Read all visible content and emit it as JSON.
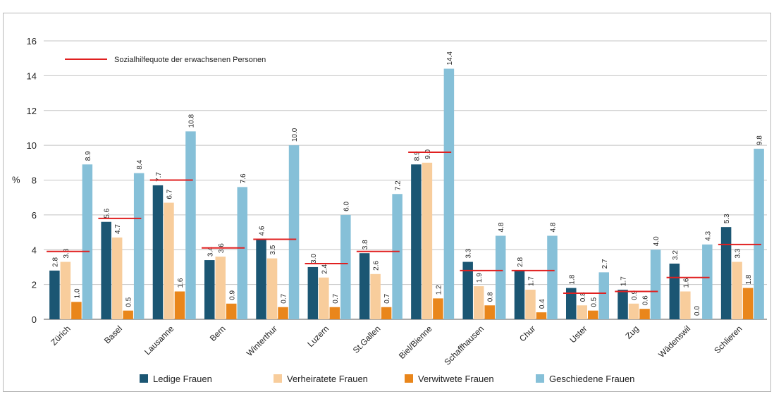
{
  "chart_data": {
    "type": "bar",
    "ylabel": "%",
    "ylim": [
      0,
      16
    ],
    "yticks": [
      "0",
      "2",
      "4",
      "6",
      "8",
      "10",
      "12",
      "14",
      "16"
    ],
    "grid": true,
    "categories": [
      "Zürich",
      "Basel",
      "Lausanne",
      "Bern",
      "Winterthur",
      "Luzern",
      "St.Gallen",
      "Biel/Bienne",
      "Schaffhausen",
      "Chur",
      "Uster",
      "Zug",
      "Wädenswil",
      "Schlieren"
    ],
    "series": [
      {
        "name": "Ledige Frauen",
        "color": "#1b5673",
        "values": [
          2.8,
          5.6,
          7.7,
          3.4,
          4.6,
          3.0,
          3.8,
          8.9,
          3.3,
          2.8,
          1.8,
          1.7,
          3.2,
          5.3
        ]
      },
      {
        "name": "Verheiratete Frauen",
        "color": "#f8cd9c",
        "values": [
          3.3,
          4.7,
          6.7,
          3.6,
          3.5,
          2.4,
          2.6,
          9.0,
          1.9,
          1.7,
          0.8,
          0.9,
          1.6,
          3.3
        ]
      },
      {
        "name": "Verwitwete Frauen",
        "color": "#e9861b",
        "values": [
          1.0,
          0.5,
          1.6,
          0.9,
          0.7,
          0.7,
          0.7,
          1.2,
          0.8,
          0.4,
          0.5,
          0.6,
          0.0,
          1.8
        ]
      },
      {
        "name": "Geschiedene Frauen",
        "color": "#86c0d8",
        "values": [
          8.9,
          8.4,
          10.8,
          7.6,
          10.0,
          6.0,
          7.2,
          14.4,
          4.8,
          4.8,
          2.7,
          4.0,
          4.3,
          9.8
        ]
      }
    ],
    "reference_line": {
      "name": "Sozialhilfequote der erwachsenen Personen",
      "color": "#e02020",
      "values": [
        3.9,
        5.8,
        8.0,
        4.1,
        4.6,
        3.2,
        3.9,
        9.6,
        2.8,
        2.8,
        1.5,
        1.6,
        2.4,
        4.3
      ]
    },
    "legend_position": "bottom",
    "reference_legend_position": "top-left"
  }
}
